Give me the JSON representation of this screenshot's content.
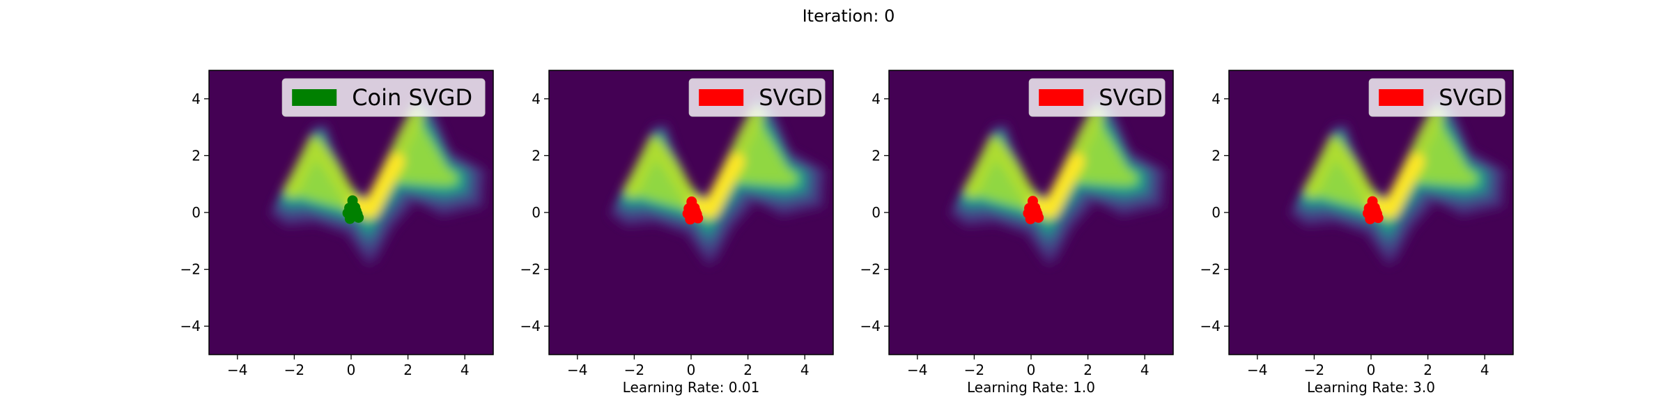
{
  "figure": {
    "suptitle": "Iteration: 0"
  },
  "chart_data": [
    {
      "type": "scatter",
      "xlim": [
        -5,
        5
      ],
      "ylim": [
        -5,
        5
      ],
      "xticks": [
        -4,
        -2,
        0,
        2,
        4
      ],
      "yticks": [
        -4,
        -2,
        0,
        2,
        4
      ],
      "grid": false,
      "background": "filled contour density (viridis), W-shaped",
      "legend": {
        "label": "Coin SVGD",
        "color": "#008000",
        "placement": "top-right"
      },
      "xlabel": "",
      "series": [
        {
          "name": "Coin SVGD",
          "color": "#008000",
          "points": [
            [
              0.05,
              0.42
            ],
            [
              -0.06,
              0.16
            ],
            [
              0.18,
              0.05
            ],
            [
              -0.12,
              -0.02
            ],
            [
              0.02,
              -0.08
            ],
            [
              0.26,
              -0.18
            ],
            [
              -0.04,
              -0.22
            ],
            [
              0.14,
              0.18
            ],
            [
              0.22,
              -0.06
            ]
          ]
        }
      ]
    },
    {
      "type": "scatter",
      "xlim": [
        -5,
        5
      ],
      "ylim": [
        -5,
        5
      ],
      "xticks": [
        -4,
        -2,
        0,
        2,
        4
      ],
      "yticks": [
        -4,
        -2,
        0,
        2,
        4
      ],
      "grid": false,
      "background": "filled contour density (viridis), W-shaped",
      "legend": {
        "label": "SVGD",
        "color": "#ff0000",
        "placement": "top-right"
      },
      "xlabel": "Learning Rate: 0.01",
      "series": [
        {
          "name": "SVGD",
          "color": "#ff0000",
          "points": [
            [
              0.02,
              0.38
            ],
            [
              -0.08,
              0.14
            ],
            [
              0.16,
              0.04
            ],
            [
              -0.12,
              -0.04
            ],
            [
              0.04,
              -0.1
            ],
            [
              0.24,
              -0.2
            ],
            [
              -0.03,
              -0.24
            ],
            [
              0.12,
              0.16
            ],
            [
              0.2,
              -0.06
            ]
          ]
        }
      ]
    },
    {
      "type": "scatter",
      "xlim": [
        -5,
        5
      ],
      "ylim": [
        -5,
        5
      ],
      "xticks": [
        -4,
        -2,
        0,
        2,
        4
      ],
      "yticks": [
        -4,
        -2,
        0,
        2,
        4
      ],
      "grid": false,
      "background": "filled contour density (viridis), W-shaped",
      "legend": {
        "label": "SVGD",
        "color": "#ff0000",
        "placement": "top-right"
      },
      "xlabel": "Learning Rate: 1.0",
      "series": [
        {
          "name": "SVGD",
          "color": "#ff0000",
          "points": [
            [
              0.06,
              0.4
            ],
            [
              -0.06,
              0.15
            ],
            [
              0.18,
              0.05
            ],
            [
              -0.1,
              -0.03
            ],
            [
              0.05,
              -0.09
            ],
            [
              0.26,
              -0.18
            ],
            [
              -0.02,
              -0.23
            ],
            [
              0.14,
              0.17
            ],
            [
              0.22,
              -0.05
            ]
          ]
        }
      ]
    },
    {
      "type": "scatter",
      "xlim": [
        -5,
        5
      ],
      "ylim": [
        -5,
        5
      ],
      "xticks": [
        -4,
        -2,
        0,
        2,
        4
      ],
      "yticks": [
        -4,
        -2,
        0,
        2,
        4
      ],
      "grid": false,
      "background": "filled contour density (viridis), W-shaped",
      "legend": {
        "label": "SVGD",
        "color": "#ff0000",
        "placement": "top-right"
      },
      "xlabel": "Learning Rate: 3.0",
      "series": [
        {
          "name": "SVGD",
          "color": "#ff0000",
          "points": [
            [
              0.05,
              0.39
            ],
            [
              -0.07,
              0.15
            ],
            [
              0.17,
              0.05
            ],
            [
              -0.11,
              -0.03
            ],
            [
              0.04,
              -0.09
            ],
            [
              0.25,
              -0.19
            ],
            [
              -0.03,
              -0.23
            ],
            [
              0.13,
              0.17
            ],
            [
              0.21,
              -0.05
            ]
          ]
        }
      ]
    }
  ],
  "colors": {
    "background_low": "#440154",
    "background_high": "#fde725"
  }
}
